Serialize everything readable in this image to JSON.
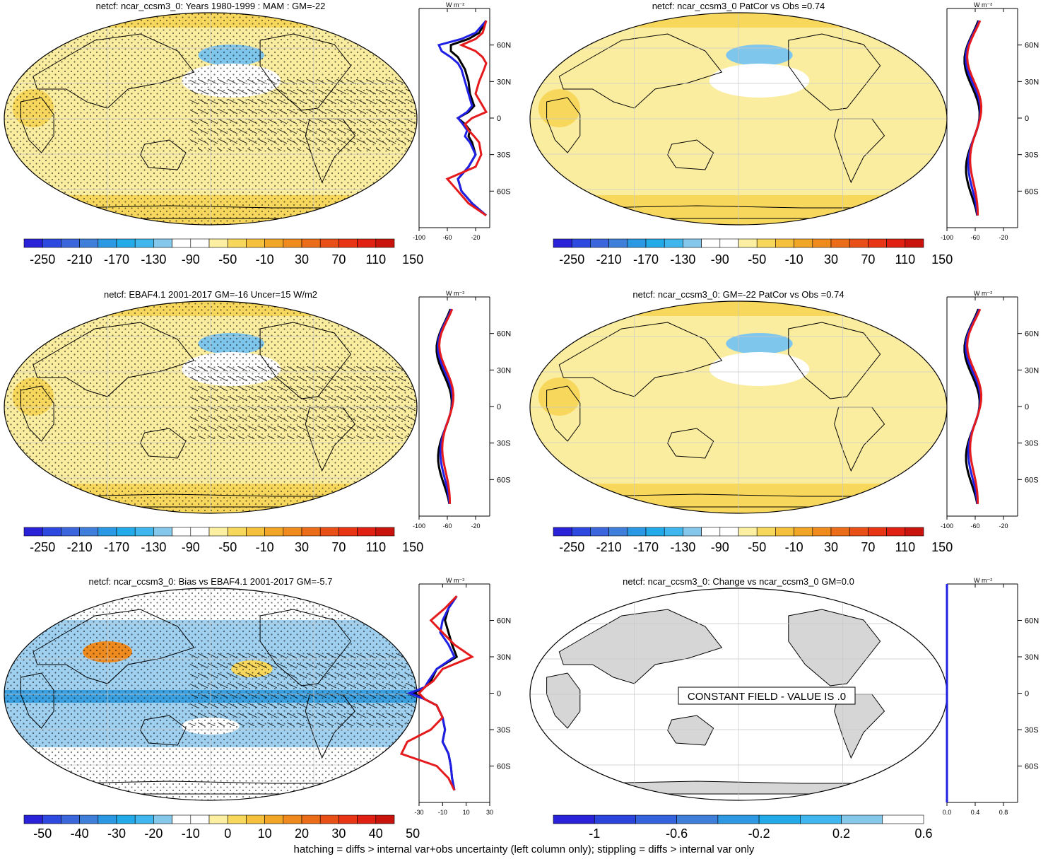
{
  "panels": [
    {
      "id": "p1",
      "title": "netcf: ncar_ccsm3_0: Years 1980-1999 : MAM : GM=-22",
      "map_fill": "warm",
      "hatching": true,
      "stippling": true,
      "constant_note": "",
      "colorbar_labels": [
        "-250",
        "-210",
        "-170",
        "-130",
        "-90",
        "-50",
        "-10",
        "30",
        "70",
        "110",
        "150"
      ],
      "profile_x_ticks": [
        "-100",
        "-60",
        "-20"
      ],
      "profile_x_range": [
        -100,
        0
      ],
      "profile_unit": "W m⁻²",
      "profile_lat_ticks": [
        "60N",
        "30N",
        "0",
        "30S",
        "60S"
      ]
    },
    {
      "id": "p2",
      "title": "netcf: ncar_ccsm3_0 PatCor vs Obs =0.74",
      "map_fill": "warm",
      "hatching": false,
      "stippling": false,
      "constant_note": "",
      "colorbar_labels": [
        "-250",
        "-210",
        "-170",
        "-130",
        "-90",
        "-50",
        "-10",
        "30",
        "70",
        "110",
        "150"
      ],
      "profile_x_ticks": [
        "-100",
        "-60",
        "-20"
      ],
      "profile_x_range": [
        -100,
        0
      ],
      "profile_unit": "W m⁻²",
      "profile_lat_ticks": [
        "60N",
        "30N",
        "0",
        "30S",
        "60S"
      ]
    },
    {
      "id": "p3",
      "title": "netcf: EBAF4.1 2001-2017 GM=-16 Uncer=15 W/m2",
      "map_fill": "warm",
      "hatching": true,
      "stippling": true,
      "constant_note": "",
      "colorbar_labels": [
        "-250",
        "-210",
        "-170",
        "-130",
        "-90",
        "-50",
        "-10",
        "30",
        "70",
        "110",
        "150"
      ],
      "profile_x_ticks": [
        "-100",
        "-60",
        "-20"
      ],
      "profile_x_range": [
        -100,
        0
      ],
      "profile_unit": "W m⁻²",
      "profile_lat_ticks": [
        "60N",
        "30N",
        "0",
        "30S",
        "60S"
      ]
    },
    {
      "id": "p4",
      "title": "netcf: ncar_ccsm3_0: GM=-22 PatCor vs Obs =0.74",
      "map_fill": "warm",
      "hatching": false,
      "stippling": false,
      "constant_note": "",
      "colorbar_labels": [
        "-250",
        "-210",
        "-170",
        "-130",
        "-90",
        "-50",
        "-10",
        "30",
        "70",
        "110",
        "150"
      ],
      "profile_x_ticks": [
        "-100",
        "-60",
        "-20"
      ],
      "profile_x_range": [
        -100,
        0
      ],
      "profile_unit": "W m⁻²",
      "profile_lat_ticks": [
        "60N",
        "30N",
        "0",
        "30S",
        "60S"
      ]
    },
    {
      "id": "p5",
      "title": "netcf: ncar_ccsm3_0: Bias vs EBAF4.1 2001-2017 GM=-5.7",
      "map_fill": "bias",
      "hatching": true,
      "stippling": true,
      "constant_note": "",
      "colorbar_labels": [
        "-50",
        "-40",
        "-30",
        "-20",
        "-10",
        "0",
        "10",
        "20",
        "30",
        "40",
        "50"
      ],
      "profile_x_ticks": [
        "-30",
        "-10",
        "10",
        "30"
      ],
      "profile_x_range": [
        -30,
        30
      ],
      "profile_unit": "W m⁻²",
      "profile_lat_ticks": [
        "60N",
        "30N",
        "0",
        "30S",
        "60S"
      ]
    },
    {
      "id": "p6",
      "title": "netcf: ncar_ccsm3_0: Change vs ncar_ccsm3_0 GM=0.0",
      "map_fill": "constant",
      "hatching": false,
      "stippling": false,
      "constant_note": "CONSTANT FIELD - VALUE IS .0",
      "colorbar_labels": [
        "-1",
        "-0.6",
        "-0.2",
        "0.2",
        "0.6"
      ],
      "profile_x_ticks": [
        "0.0",
        "0.4",
        "0.8"
      ],
      "profile_x_range": [
        0,
        1
      ],
      "profile_unit": "W m⁻²",
      "profile_lat_ticks": [
        "60N",
        "30N",
        "0",
        "30S",
        "60S"
      ]
    }
  ],
  "footer": "hatching = diffs > internal var+obs uncertainty (left column only); stippling = diffs > internal var only",
  "colors": {
    "profile_model": "#000000",
    "profile_obs": "#e41a1c",
    "profile_alt": "#1f1fe6",
    "land_gray": "#d6d6d6",
    "warm_light": "#fbed9f",
    "warm_mid": "#f8d85c",
    "cool_light": "#7fc6ec",
    "cool_mid": "#3aa0e0"
  },
  "colormaps": {
    "warm_scale": [
      "#2a22d8",
      "#2e49e0",
      "#3c66dc",
      "#3f7fd9",
      "#2a98e3",
      "#22abe8",
      "#3fb7ee",
      "#85c8ec",
      "#ffffff",
      "#ffffff",
      "#fcefa2",
      "#f8d85c",
      "#f5c13c",
      "#f2a628",
      "#ef8a1e",
      "#ec6d19",
      "#e95017",
      "#e73515",
      "#e02012",
      "#c8140c"
    ],
    "bias_scale": [
      "#2a22d8",
      "#2e49e0",
      "#3c66dc",
      "#3f7fd9",
      "#2a98e3",
      "#22abe8",
      "#3fb7ee",
      "#85c8ec",
      "#ffffff",
      "#ffffff",
      "#fcefa2",
      "#f8d85c",
      "#f5c13c",
      "#f2a628",
      "#ef8a1e",
      "#ec6d19",
      "#e95017",
      "#e73515",
      "#e02012",
      "#c8140c"
    ],
    "change_scale": [
      "#2a22d8",
      "#2a44dc",
      "#3463dd",
      "#3f7fd9",
      "#2e99e2",
      "#22abe8",
      "#3fb7ee",
      "#85c8ec",
      "#ffffff"
    ]
  },
  "chart_data": [
    {
      "type": "line",
      "panel": "p1",
      "title": "netcf: ncar_ccsm3_0: Years 1980-1999 : MAM : GM=-22",
      "ylabel": "W m⁻²",
      "ylim": [
        -90,
        90
      ],
      "xlim": [
        -100,
        0
      ],
      "series": [
        {
          "lat": [
            80,
            70,
            65,
            60,
            55,
            50,
            45,
            40,
            30,
            20,
            10,
            5,
            0,
            -5,
            -10,
            -15,
            -20,
            -30,
            -40,
            -50,
            -60,
            -70,
            -80
          ],
          "values": [
            -5,
            -15,
            -30,
            -55,
            -55,
            -45,
            -40,
            -35,
            -30,
            -28,
            -22,
            -30,
            -45,
            -35,
            -28,
            -30,
            -25,
            -20,
            -30,
            -45,
            -40,
            -25,
            -5
          ]
        },
        {
          "lat": [
            80,
            70,
            65,
            60,
            55,
            50,
            45,
            40,
            30,
            20,
            10,
            5,
            0,
            -5,
            -10,
            -15,
            -20,
            -30,
            -40,
            -50,
            -60,
            -70,
            -80
          ],
          "values": [
            -5,
            -20,
            -40,
            -72,
            -68,
            -55,
            -45,
            -40,
            -35,
            -30,
            -25,
            -32,
            -45,
            -38,
            -32,
            -35,
            -28,
            -20,
            -30,
            -45,
            -40,
            -25,
            -5
          ]
        },
        {
          "lat": [
            80,
            70,
            65,
            60,
            55,
            50,
            45,
            40,
            30,
            20,
            10,
            5,
            0,
            -5,
            -10,
            -15,
            -20,
            -30,
            -40,
            -50,
            -60,
            -70,
            -80
          ],
          "values": [
            -5,
            -10,
            -20,
            -40,
            -20,
            -10,
            -5,
            -8,
            -15,
            -20,
            -10,
            -5,
            -25,
            -35,
            -30,
            -22,
            -15,
            -12,
            -20,
            -60,
            -45,
            -30,
            -5
          ]
        }
      ]
    },
    {
      "type": "line",
      "panel": "p5",
      "title": "netcf: ncar_ccsm3_0: Bias vs EBAF4.1 2001-2017 GM=-5.7",
      "ylabel": "W m⁻²",
      "ylim": [
        -90,
        90
      ],
      "xlim": [
        -30,
        30
      ],
      "series": [
        {
          "lat": [
            80,
            70,
            60,
            50,
            40,
            30,
            20,
            10,
            5,
            0,
            -5,
            -10,
            -20,
            -30,
            -40,
            -50,
            -60,
            -70,
            -80
          ],
          "values": [
            2,
            -5,
            -8,
            -5,
            -2,
            2,
            -15,
            -20,
            -25,
            -35,
            -25,
            -15,
            -10,
            -8,
            -10,
            -5,
            -3,
            -2,
            0
          ]
        },
        {
          "lat": [
            80,
            70,
            60,
            50,
            40,
            30,
            20,
            10,
            5,
            0,
            -5,
            -10,
            -20,
            -30,
            -40,
            -50,
            -60,
            -70,
            -80
          ],
          "values": [
            2,
            -5,
            -10,
            -12,
            -5,
            0,
            -15,
            -22,
            -25,
            -38,
            -25,
            -15,
            -10,
            -8,
            -10,
            -5,
            -3,
            -2,
            0
          ]
        },
        {
          "lat": [
            80,
            70,
            60,
            50,
            40,
            30,
            20,
            10,
            5,
            0,
            -5,
            -10,
            -20,
            -30,
            -40,
            -50,
            -60,
            -70,
            -80
          ],
          "values": [
            2,
            -8,
            -20,
            -10,
            0,
            15,
            -10,
            -18,
            -25,
            -30,
            -25,
            -15,
            -10,
            -20,
            -40,
            -45,
            -15,
            -5,
            0
          ]
        }
      ]
    },
    {
      "type": "line",
      "panel": "p6",
      "title": "netcf: ncar_ccsm3_0: Change vs ncar_ccsm3_0 GM=0.0",
      "ylabel": "W m⁻²",
      "ylim": [
        -90,
        90
      ],
      "xlim": [
        0,
        1
      ],
      "series": [
        {
          "lat": [
            90,
            -90
          ],
          "values": [
            0,
            0
          ]
        }
      ]
    }
  ]
}
